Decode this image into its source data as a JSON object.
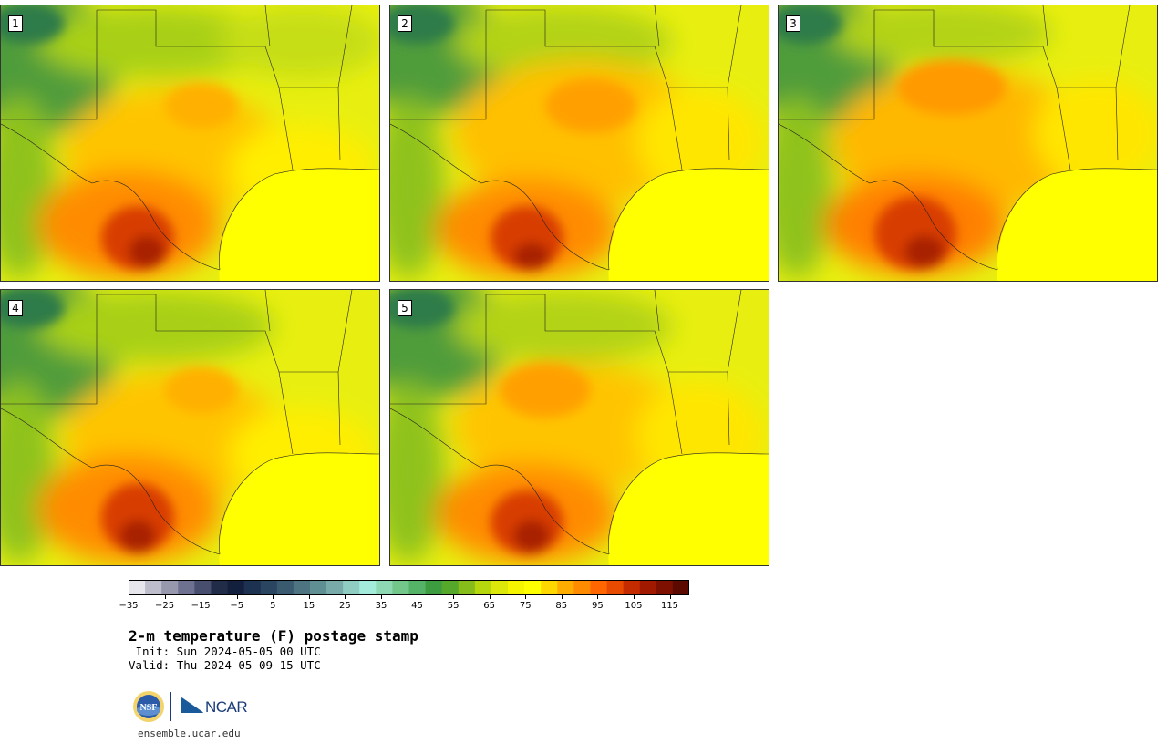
{
  "panels": [
    {
      "label": "1"
    },
    {
      "label": "2"
    },
    {
      "label": "3"
    },
    {
      "label": "4"
    },
    {
      "label": "5"
    }
  ],
  "colorbar": {
    "colors": [
      "#e6e6ec",
      "#bdbdcc",
      "#9797ad",
      "#6e7290",
      "#474e6e",
      "#202c48",
      "#13203d",
      "#1d3150",
      "#2a4560",
      "#3a5a70",
      "#4d7480",
      "#5f8e93",
      "#77aaa8",
      "#8fcdc3",
      "#a3ecdc",
      "#8ed9b3",
      "#73c78b",
      "#55b368",
      "#3d9c3f",
      "#56a82a",
      "#86bd1a",
      "#b6d60e",
      "#dde80a",
      "#f6f500",
      "#ffff00",
      "#ffd800",
      "#ffae00",
      "#ff8c00",
      "#ff6600",
      "#e84a00",
      "#c42c00",
      "#a11a00",
      "#7d1000",
      "#5c0a00"
    ],
    "tick_labels": [
      "−35",
      "−25",
      "−15",
      "−5",
      "5",
      "15",
      "25",
      "35",
      "45",
      "55",
      "65",
      "75",
      "85",
      "95",
      "105",
      "115"
    ]
  },
  "title": "2-m temperature (F) postage stamp",
  "init": " Init: Sun 2024-05-05 00 UTC",
  "valid": "Valid: Thu 2024-05-09 15 UTC",
  "logos": {
    "nsf": "NSF",
    "ncar": "NCAR"
  },
  "website": "ensemble.ucar.edu"
}
